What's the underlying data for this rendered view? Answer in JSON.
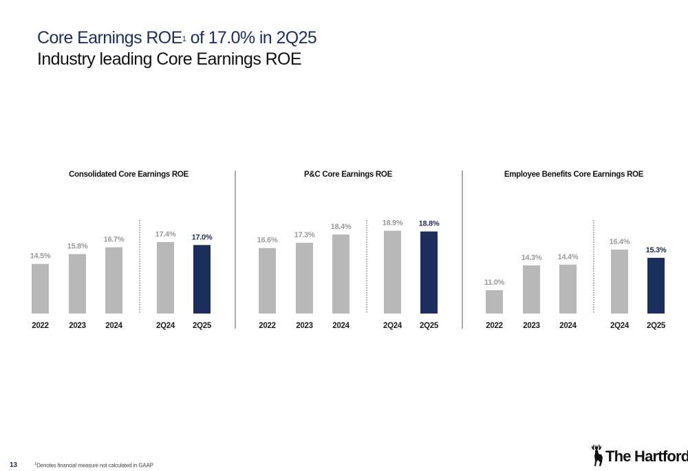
{
  "header": {
    "title_main": "Core Earnings ROE",
    "title_sup": "1",
    "title_rest": " of 17.0% in 2Q25",
    "subtitle": "Industry leading Core Earnings ROE"
  },
  "chart_data": [
    {
      "type": "bar",
      "title": "Consolidated Core Earnings ROE",
      "categories": [
        "2022",
        "2023",
        "2024",
        "2Q24",
        "2Q25"
      ],
      "values": [
        14.5,
        15.8,
        16.7,
        17.4,
        17.0
      ],
      "labels": [
        "14.5%",
        "15.8%",
        "16.7%",
        "17.4%",
        "17.0%"
      ],
      "highlight_index": 4,
      "separator_after_index": 2
    },
    {
      "type": "bar",
      "title": "P&C Core Earnings ROE",
      "categories": [
        "2022",
        "2023",
        "2024",
        "2Q24",
        "2Q25"
      ],
      "values": [
        16.6,
        17.3,
        18.4,
        18.9,
        18.8
      ],
      "labels": [
        "16.6%",
        "17.3%",
        "18.4%",
        "18.9%",
        "18.8%"
      ],
      "highlight_index": 4,
      "separator_after_index": 2
    },
    {
      "type": "bar",
      "title": "Employee Benefits Core Earnings ROE",
      "categories": [
        "2022",
        "2023",
        "2024",
        "2Q24",
        "2Q25"
      ],
      "values": [
        11.0,
        14.3,
        14.4,
        16.4,
        15.3
      ],
      "labels": [
        "11.0%",
        "14.3%",
        "14.4%",
        "16.4%",
        "15.3%"
      ],
      "highlight_index": 4,
      "separator_after_index": 2
    }
  ],
  "colors": {
    "bar_default": "#b8b8b8",
    "bar_highlight": "#1c2e5c",
    "label_default": "#9a9a9a",
    "label_highlight": "#1c2e5c",
    "axis_text": "#1a1a1a"
  },
  "footer": {
    "page_number": "13",
    "note_sup": "1",
    "note": "Denotes financial measure not calculated in GAAP"
  },
  "logo": {
    "text": "The Hartford",
    "icon": "stag-icon"
  }
}
